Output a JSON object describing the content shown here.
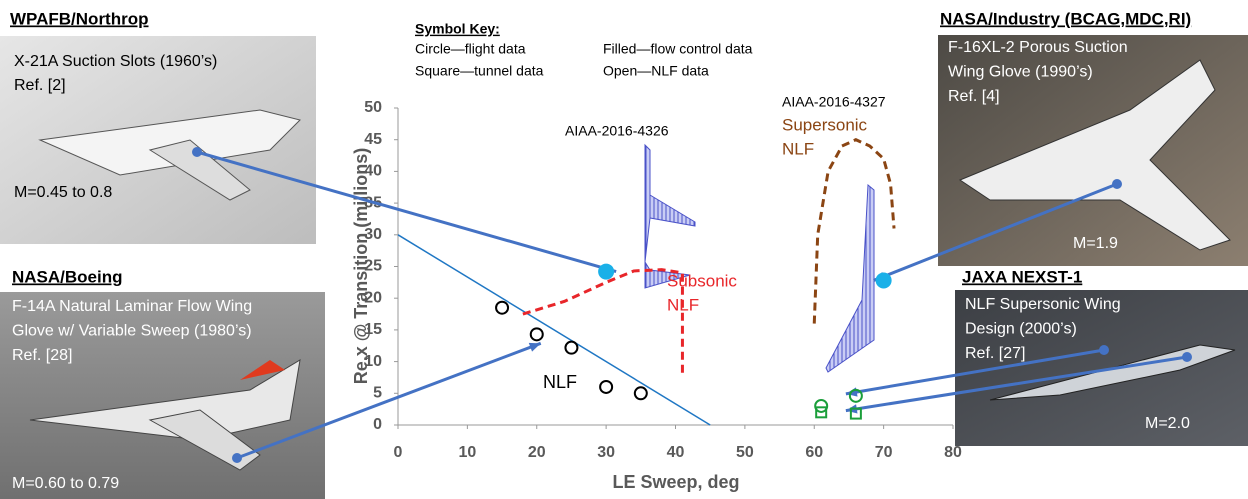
{
  "chart_data": {
    "type": "scatter",
    "xlabel": "LE Sweep, deg",
    "ylabel": "Re,x @ Transition (millions)",
    "xlim": [
      0,
      80
    ],
    "ylim": [
      0,
      50
    ],
    "xticks": [
      0,
      10,
      20,
      30,
      40,
      50,
      60,
      70,
      80
    ],
    "yticks": [
      0,
      5,
      10,
      15,
      20,
      25,
      30,
      35,
      40,
      45,
      50
    ],
    "series": [
      {
        "marker": "circle",
        "filled": false,
        "color": "#000000",
        "x": [
          15,
          20,
          25,
          30,
          35
        ],
        "y": [
          18.5,
          14.3,
          12.2,
          6,
          5
        ]
      },
      {
        "marker": "circle",
        "filled": true,
        "color": "#1ab0e8",
        "x": [
          30,
          70
        ],
        "y": [
          24.2,
          22.8
        ]
      },
      {
        "marker": "circle",
        "filled": false,
        "color": "#1a9e3a",
        "x": [
          61,
          66
        ],
        "y": [
          3,
          4.6
        ]
      },
      {
        "marker": "square",
        "filled": false,
        "color": "#1a9e3a",
        "x": [
          61,
          66
        ],
        "y": [
          2,
          1.8
        ]
      }
    ],
    "lines": [
      {
        "color": "#1f77c4",
        "dashed": false,
        "x": [
          0,
          45
        ],
        "y": [
          30,
          0
        ]
      },
      {
        "color": "#e8262a",
        "dashed": true,
        "x": [
          18,
          24,
          30,
          34,
          38,
          41,
          41
        ],
        "y": [
          17.5,
          19.5,
          22.5,
          24.3,
          24.5,
          24,
          8
        ]
      },
      {
        "color": "#8b4513",
        "dashed": true,
        "x": [
          60,
          60.5,
          62,
          64,
          66,
          68,
          70,
          71,
          71.5
        ],
        "y": [
          16,
          30,
          40,
          44,
          45,
          44,
          42,
          38,
          31
        ]
      }
    ],
    "annotations": [
      "NLF",
      "Subsonic",
      "NLF",
      "AIAA-2016-4326",
      "AIAA-2016-4327",
      "Supersonic",
      "NLF"
    ]
  },
  "symbol_key": {
    "title": "Symbol Key:",
    "items": [
      "Circle—flight data",
      "Square—tunnel data",
      "Filled—flow control data",
      "Open—NLF data"
    ]
  },
  "panels": [
    {
      "heading": "WPAFB/Northrop",
      "lines": [
        "X-21A Suction Slots (1960’s)",
        "Ref. [2]"
      ],
      "mach": "M=0.45 to 0.8"
    },
    {
      "heading": "NASA/Boeing",
      "lines": [
        "F-14A Natural Laminar Flow Wing",
        "Glove w/ Variable Sweep (1980’s)",
        "Ref. [28]"
      ],
      "mach": "M=0.60 to 0.79"
    },
    {
      "heading": "NASA/Industry (BCAG,MDC,RI)",
      "lines": [
        "F-16XL-2 Porous Suction",
        "Wing Glove (1990’s)",
        "Ref. [4]"
      ],
      "mach": "M=1.9"
    },
    {
      "heading": "JAXA NEXST-1",
      "lines": [
        "NLF Supersonic Wing",
        "Design (2000’s)",
        "Ref. [27]"
      ],
      "mach": "M=2.0"
    }
  ]
}
